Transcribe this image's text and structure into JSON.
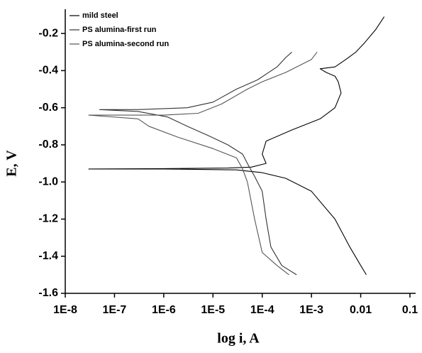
{
  "chart_data": {
    "type": "line",
    "x_scale": "log",
    "x_label": "log i, A",
    "y_label": "E, V",
    "xlim": [
      1e-08,
      0.1
    ],
    "xticks": [
      {
        "value": 1e-08,
        "label": "1E-8"
      },
      {
        "value": 1e-07,
        "label": "1E-7"
      },
      {
        "value": 1e-06,
        "label": "1E-6"
      },
      {
        "value": 1e-05,
        "label": "1E-5"
      },
      {
        "value": 0.0001,
        "label": "1E-4"
      },
      {
        "value": 0.001,
        "label": "1E-3"
      },
      0.01,
      0.1
    ],
    "ylim": [
      -1.6,
      -0.1
    ],
    "yticks": [
      -1.6,
      -1.4,
      -1.2,
      {
        "value": -1,
        "label": "-1.0"
      },
      -0.8,
      -0.6,
      -0.4,
      -0.2
    ],
    "legend": "top-left",
    "grid": false,
    "series": [
      {
        "name": "mild steel",
        "color": "#000000",
        "x": [
          0.013,
          0.01,
          0.006,
          0.003,
          0.001,
          0.0003,
          0.0001,
          3e-05,
          1e-06,
          3e-08,
          1e-06,
          2e-05,
          6e-05,
          0.00012,
          0.0001,
          0.00012,
          0.0004,
          0.0015,
          0.003,
          0.004,
          0.0035,
          0.003,
          0.002,
          0.0015,
          0.003,
          0.005,
          0.008,
          0.012,
          0.02,
          0.03
        ],
        "values": [
          -1.5,
          -1.45,
          -1.35,
          -1.2,
          -1.05,
          -0.98,
          -0.95,
          -0.935,
          -0.93,
          -0.93,
          -0.928,
          -0.925,
          -0.92,
          -0.9,
          -0.85,
          -0.78,
          -0.72,
          -0.66,
          -0.6,
          -0.52,
          -0.46,
          -0.43,
          -0.41,
          -0.39,
          -0.38,
          -0.34,
          -0.3,
          -0.25,
          -0.18,
          -0.11
        ]
      },
      {
        "name": "PS alumina-first run",
        "color": "#333333",
        "x": [
          0.0005,
          0.00025,
          0.00015,
          0.00012,
          0.0001,
          7e-05,
          5e-05,
          4e-05,
          2e-05,
          8e-06,
          3e-06,
          1.2e-06,
          3e-07,
          5e-08,
          3e-07,
          3e-06,
          1e-05,
          3e-05,
          8e-05,
          0.0002,
          0.0003,
          0.0004
        ],
        "values": [
          -1.5,
          -1.45,
          -1.35,
          -1.2,
          -1.05,
          -0.97,
          -0.9,
          -0.85,
          -0.8,
          -0.75,
          -0.7,
          -0.65,
          -0.62,
          -0.61,
          -0.61,
          -0.6,
          -0.57,
          -0.5,
          -0.45,
          -0.38,
          -0.33,
          -0.3
        ]
      },
      {
        "name": "PS alumina-second run",
        "color": "#555555",
        "x": [
          0.00035,
          0.0002,
          0.0001,
          7e-05,
          5e-05,
          4e-05,
          3e-05,
          1e-05,
          2e-06,
          5e-07,
          3e-07,
          3e-08,
          1e-06,
          5e-06,
          1.5e-05,
          5e-05,
          0.0001,
          0.0003,
          0.001,
          0.0013
        ],
        "values": [
          -1.5,
          -1.45,
          -1.38,
          -1.2,
          -1.0,
          -0.93,
          -0.87,
          -0.82,
          -0.76,
          -0.7,
          -0.66,
          -0.64,
          -0.64,
          -0.63,
          -0.58,
          -0.5,
          -0.46,
          -0.41,
          -0.34,
          -0.3
        ]
      }
    ]
  }
}
